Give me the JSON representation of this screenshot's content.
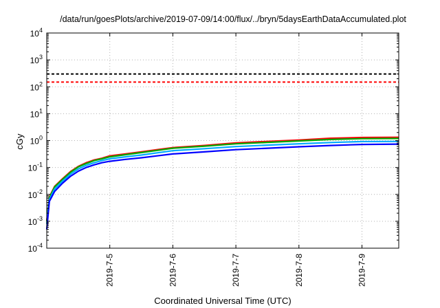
{
  "chart_data": {
    "type": "line",
    "title": "/data/run/goesPlots/archive/2019-07-09/14:00/flux/../bryn/5daysEarthDataAccumulated.plot",
    "xlabel": "Coordinated Universal Time (UTC)",
    "ylabel": "cGy",
    "x_scale": "time",
    "y_scale": "log",
    "xlim": [
      "2019-07-04 00:00",
      "2019-07-09 14:00"
    ],
    "ylim": [
      0.0001,
      10000
    ],
    "x_ticks": [
      "2019-7-5",
      "2019-7-6",
      "2019-7-7",
      "2019-7-8",
      "2019-7-9"
    ],
    "y_ticks": [
      {
        "base": "10",
        "exp": "-4"
      },
      {
        "base": "10",
        "exp": "-3"
      },
      {
        "base": "10",
        "exp": "-2"
      },
      {
        "base": "10",
        "exp": "-1"
      },
      {
        "base": "10",
        "exp": "0"
      },
      {
        "base": "10",
        "exp": "1"
      },
      {
        "base": "10",
        "exp": "2"
      },
      {
        "base": "10",
        "exp": "3"
      },
      {
        "base": "10",
        "exp": "4"
      }
    ],
    "grid": true,
    "reference_lines": [
      {
        "y": 300,
        "color": "#000000",
        "style": "dashed"
      },
      {
        "y": 150,
        "color": "#ff0000",
        "style": "dashed"
      }
    ],
    "series": [
      {
        "color": "#ff0000",
        "x": [
          "2019-07-04 00:00",
          "2019-07-04 01:00",
          "2019-07-04 03:00",
          "2019-07-04 06:00",
          "2019-07-04 09:00",
          "2019-07-04 12:00",
          "2019-07-04 15:00",
          "2019-07-04 18:00",
          "2019-07-04 21:00",
          "2019-07-05 00:00",
          "2019-07-05 06:00",
          "2019-07-05 12:00",
          "2019-07-05 18:00",
          "2019-07-06 00:00",
          "2019-07-06 12:00",
          "2019-07-07 00:00",
          "2019-07-07 12:00",
          "2019-07-08 00:00",
          "2019-07-08 12:00",
          "2019-07-09 00:00",
          "2019-07-09 14:00"
        ],
        "y": [
          0.001,
          0.008,
          0.02,
          0.038,
          0.07,
          0.11,
          0.15,
          0.19,
          0.22,
          0.27,
          0.32,
          0.38,
          0.46,
          0.55,
          0.66,
          0.82,
          0.93,
          1.05,
          1.22,
          1.3,
          1.33
        ]
      },
      {
        "color": "#00aa00",
        "x": [
          "2019-07-04 00:00",
          "2019-07-04 01:00",
          "2019-07-04 03:00",
          "2019-07-04 06:00",
          "2019-07-04 09:00",
          "2019-07-04 12:00",
          "2019-07-04 15:00",
          "2019-07-04 18:00",
          "2019-07-04 21:00",
          "2019-07-05 00:00",
          "2019-07-05 06:00",
          "2019-07-05 12:00",
          "2019-07-05 18:00",
          "2019-07-06 00:00",
          "2019-07-06 12:00",
          "2019-07-07 00:00",
          "2019-07-07 12:00",
          "2019-07-08 00:00",
          "2019-07-08 12:00",
          "2019-07-09 00:00",
          "2019-07-09 14:00"
        ],
        "y": [
          0.001,
          0.0075,
          0.019,
          0.036,
          0.066,
          0.105,
          0.14,
          0.18,
          0.21,
          0.25,
          0.3,
          0.36,
          0.43,
          0.52,
          0.62,
          0.76,
          0.86,
          0.97,
          1.1,
          1.18,
          1.2
        ]
      },
      {
        "color": "#00aaff",
        "x": [
          "2019-07-04 00:00",
          "2019-07-04 01:00",
          "2019-07-04 03:00",
          "2019-07-04 06:00",
          "2019-07-04 09:00",
          "2019-07-04 12:00",
          "2019-07-04 15:00",
          "2019-07-04 18:00",
          "2019-07-04 21:00",
          "2019-07-05 00:00",
          "2019-07-05 06:00",
          "2019-07-05 12:00",
          "2019-07-05 18:00",
          "2019-07-06 00:00",
          "2019-07-06 12:00",
          "2019-07-07 00:00",
          "2019-07-07 12:00",
          "2019-07-08 00:00",
          "2019-07-08 12:00",
          "2019-07-09 00:00",
          "2019-07-09 14:00"
        ],
        "y": [
          0.0008,
          0.0065,
          0.016,
          0.031,
          0.056,
          0.088,
          0.12,
          0.15,
          0.18,
          0.21,
          0.25,
          0.29,
          0.35,
          0.42,
          0.5,
          0.6,
          0.68,
          0.76,
          0.85,
          0.92,
          0.93
        ]
      },
      {
        "color": "#0000ff",
        "x": [
          "2019-07-04 00:00",
          "2019-07-04 01:00",
          "2019-07-04 03:00",
          "2019-07-04 06:00",
          "2019-07-04 09:00",
          "2019-07-04 12:00",
          "2019-07-04 15:00",
          "2019-07-04 18:00",
          "2019-07-04 21:00",
          "2019-07-05 00:00",
          "2019-07-05 06:00",
          "2019-07-05 12:00",
          "2019-07-05 18:00",
          "2019-07-06 00:00",
          "2019-07-06 12:00",
          "2019-07-07 00:00",
          "2019-07-07 12:00",
          "2019-07-08 00:00",
          "2019-07-08 12:00",
          "2019-07-09 00:00",
          "2019-07-09 14:00"
        ],
        "y": [
          0.0005,
          0.0055,
          0.013,
          0.026,
          0.047,
          0.073,
          0.1,
          0.125,
          0.15,
          0.17,
          0.2,
          0.23,
          0.27,
          0.32,
          0.38,
          0.46,
          0.52,
          0.59,
          0.66,
          0.72,
          0.74
        ]
      }
    ]
  }
}
